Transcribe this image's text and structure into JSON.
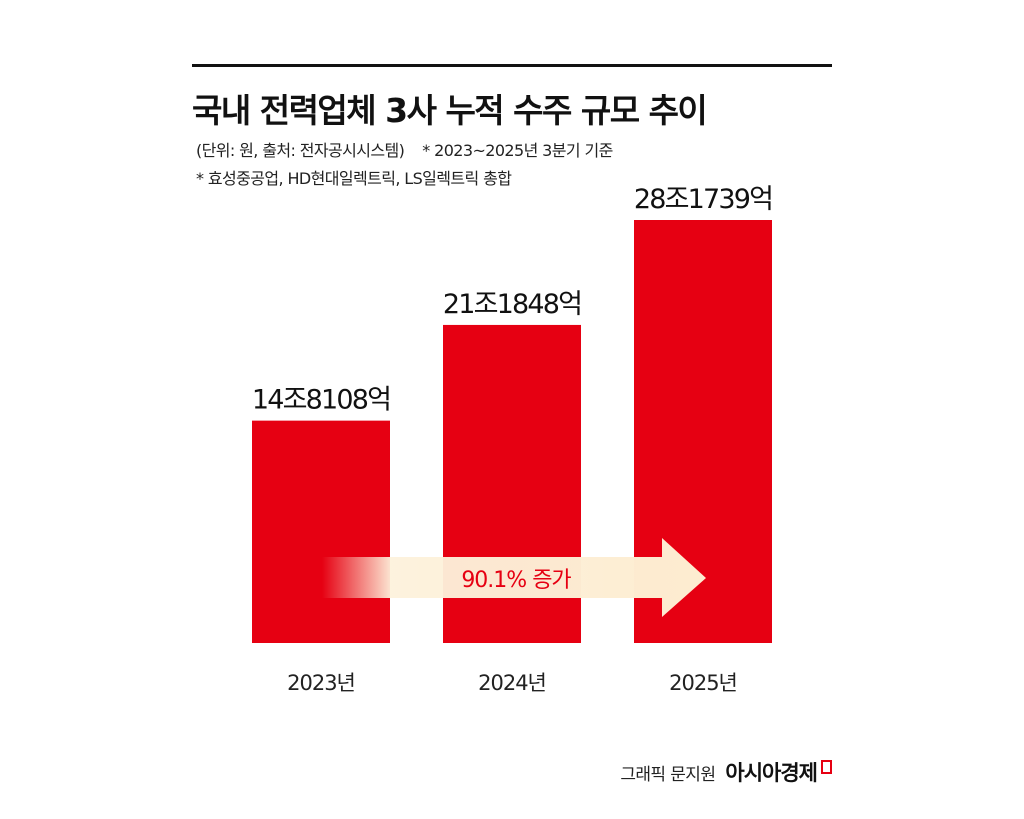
{
  "header": {
    "title": "국내 전력업체 3사 누적 수주 규모 추이",
    "unit_source": "(단위: 원, 출처: 전자공시시스템)",
    "basis_note": "* 2023~2025년 3분기 기준",
    "scope_note": "* 효성중공업, HD현대일렉트릭, LS일렉트릭 총합"
  },
  "chart_data": {
    "type": "bar",
    "categories": [
      "2023년",
      "2024년",
      "2025년"
    ],
    "values": [
      148108,
      211848,
      281739
    ],
    "value_unit": "억 원",
    "data_labels": [
      "14조8108억",
      "21조1848억",
      "28조1739억"
    ],
    "annotation": "90.1% 증가",
    "colors": {
      "bar": "#e60012",
      "annotation_text": "#e60012",
      "arrow": "#fdeed3"
    },
    "ylim": [
      0,
      300000
    ],
    "grid": false,
    "legend": "none"
  },
  "footer": {
    "credit": "그래픽 문지원",
    "brand": "아시아경제"
  }
}
